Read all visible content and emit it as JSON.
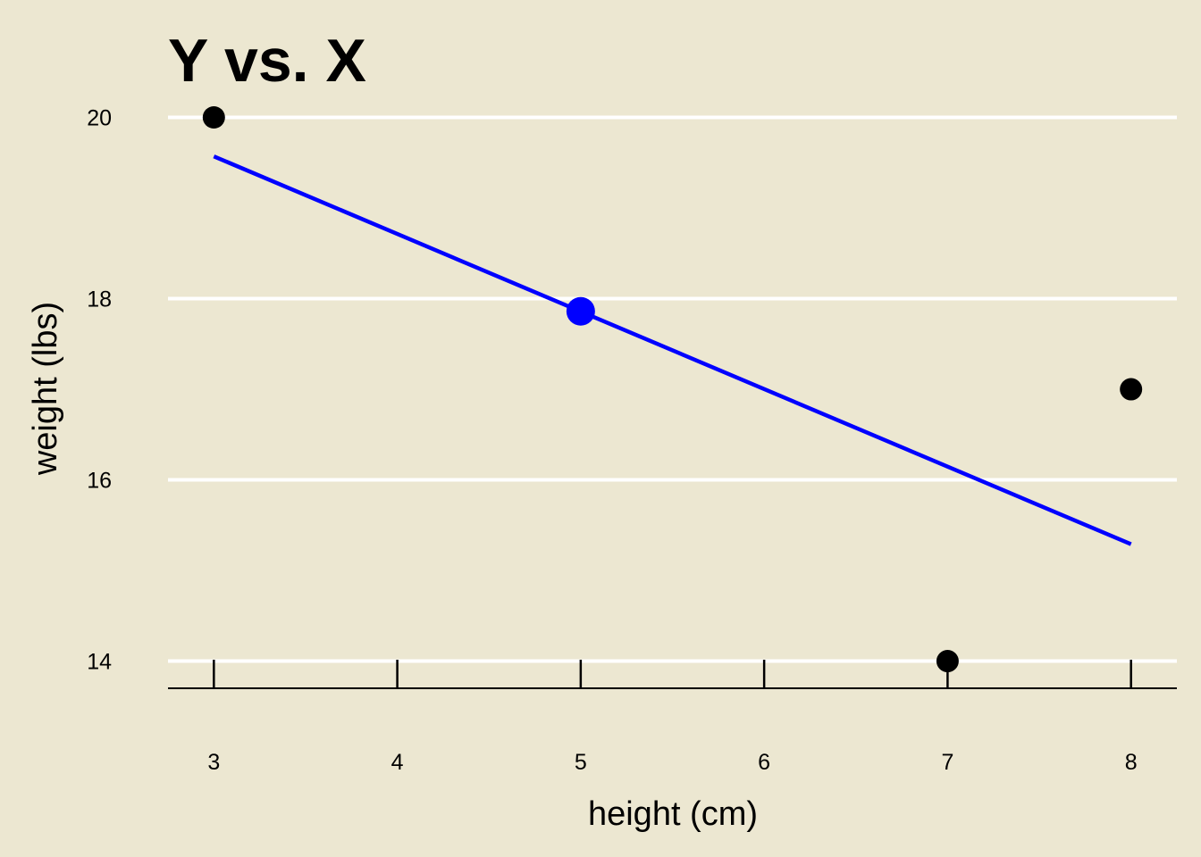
{
  "colors": {
    "background": "#ECE7D1",
    "gridline": "#FFFFFF",
    "point": "#000000",
    "fit_line": "#0000FF",
    "axis": "#000000"
  },
  "chart_data": {
    "type": "scatter",
    "title": "Y vs. X",
    "xlabel": "height (cm)",
    "ylabel": "weight (lbs)",
    "xlim": [
      2.75,
      8.25
    ],
    "ylim": [
      13.7,
      21
    ],
    "x_ticks": [
      3,
      4,
      5,
      6,
      7,
      8
    ],
    "y_ticks": [
      14,
      16,
      18,
      20
    ],
    "grid": "horizontal",
    "points": [
      {
        "x": 3,
        "y": 20
      },
      {
        "x": 7,
        "y": 14
      },
      {
        "x": 8,
        "y": 17
      }
    ],
    "fit_line": {
      "x": [
        3,
        8
      ],
      "y": [
        19.57,
        15.29
      ]
    },
    "highlight_point": {
      "x": 5,
      "y": 17.86
    }
  }
}
